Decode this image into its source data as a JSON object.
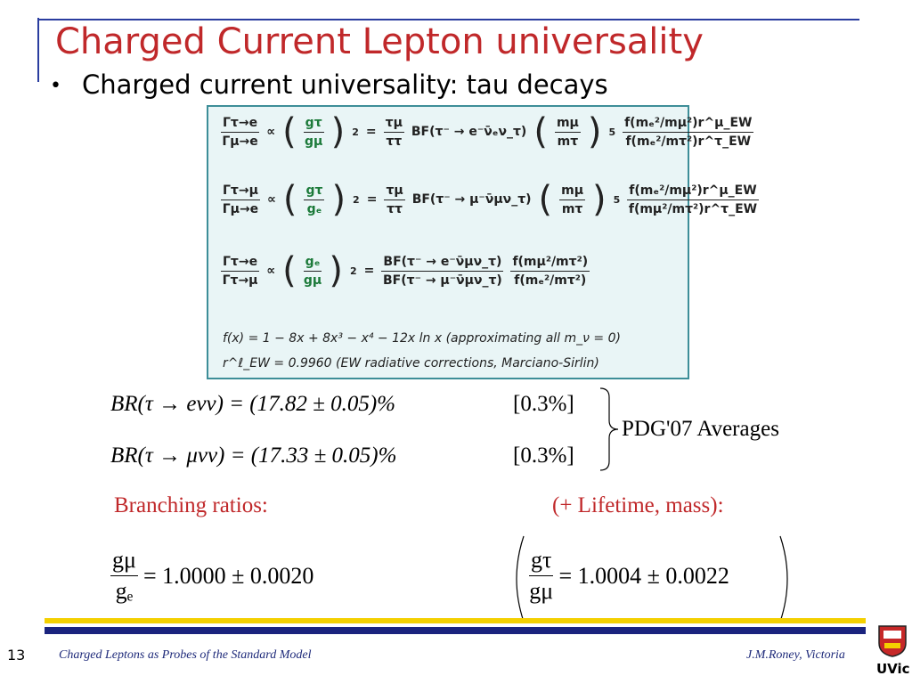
{
  "header": {
    "title": "Charged Current Lepton universality",
    "bullet": "Charged current universality: tau decays"
  },
  "formula_box": {
    "eq1": {
      "lhs_num": "Γτ→e",
      "lhs_den": "Γμ→e",
      "prop": "∝",
      "g_num": "gτ",
      "g_den": "gμ",
      "power": "2",
      "equals": "=",
      "tau_num": "τμ",
      "tau_den": "ττ",
      "bf": "BF(τ⁻ → e⁻ν̄ₑν_τ)",
      "m_num": "mμ",
      "m_den": "mτ",
      "m_power": "5",
      "f_num": "f(mₑ²/mμ²)r^μ_EW",
      "f_den": "f(mₑ²/mτ²)r^τ_EW"
    },
    "eq2": {
      "lhs_num": "Γτ→μ",
      "lhs_den": "Γμ→e",
      "prop": "∝",
      "g_num": "gτ",
      "g_den": "gₑ",
      "power": "2",
      "equals": "=",
      "tau_num": "τμ",
      "tau_den": "ττ",
      "bf": "BF(τ⁻ → μ⁻ν̄μν_τ)",
      "m_num": "mμ",
      "m_den": "mτ",
      "m_power": "5",
      "f_num": "f(mₑ²/mμ²)r^μ_EW",
      "f_den": "f(mμ²/mτ²)r^τ_EW"
    },
    "eq3": {
      "lhs_num": "Γτ→e",
      "lhs_den": "Γτ→μ",
      "prop": "∝",
      "g_num": "gₑ",
      "g_den": "gμ",
      "power": "2",
      "equals": "=",
      "bf_num": "BF(τ⁻ → e⁻ν̄μν_τ)",
      "bf_den": "BF(τ⁻ → μ⁻ν̄μν_τ)",
      "f_num": "f(mμ²/mτ²)",
      "f_den": "f(mₑ²/mτ²)"
    },
    "f_def": "f(x) = 1 − 8x + 8x³ − x⁴ − 12x ln x     (approximating all m_ν = 0)",
    "r_def": "r^ℓ_EW = 0.9960    (EW radiative corrections, Marciano-Sirlin)"
  },
  "br": {
    "line1": "BR(τ → eνν) = (17.82 ± 0.05)%",
    "err1": "[0.3%]",
    "line2": "BR(τ → μνν) = (17.33 ± 0.05)%",
    "err2": "[0.3%]",
    "note": "PDG'07 Averages"
  },
  "results": {
    "left_label": "Branching ratios:",
    "right_label": "(+ Lifetime, mass):",
    "left": {
      "num": "gμ",
      "den": "gₑ",
      "value": "= 1.0000 ± 0.0020"
    },
    "right": {
      "num": "gτ",
      "den": "gμ",
      "value": "= 1.0004 ± 0.0022"
    }
  },
  "footer": {
    "page": "13",
    "talk": "Charged Leptons as Probes of the Standard Model",
    "author": "J.M.Roney, Victoria",
    "logo": "UVic"
  }
}
